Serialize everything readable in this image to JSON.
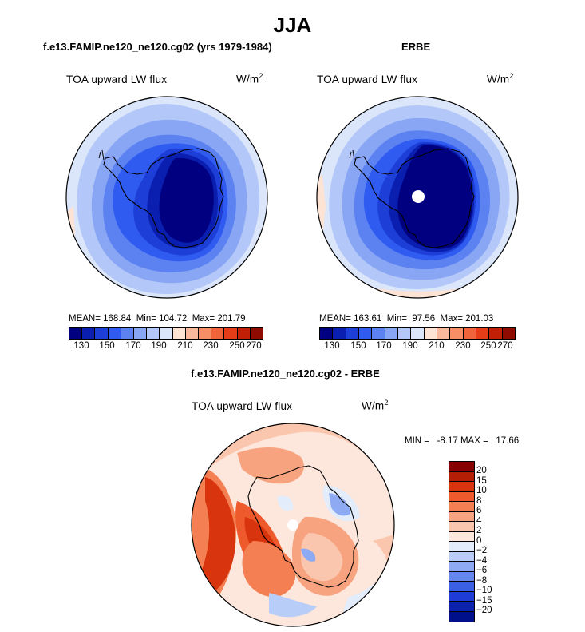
{
  "title": "JJA",
  "left_panel": {
    "case": "f.e13.FAMIP.ne120_ne120.cg02 (yrs 1979-1984)",
    "variable": "TOA upward LW flux",
    "units_base": "W/m",
    "units_exp": "2",
    "stats": "MEAN= 168.84  Min= 104.72  Max= 201.79",
    "map": "polar stereographic, South Pole"
  },
  "right_panel": {
    "case": "ERBE",
    "variable": "TOA upward LW flux",
    "units_base": "W/m",
    "units_exp": "2",
    "stats": "MEAN= 163.61  Min=  97.56  Max= 201.03",
    "map": "polar stereographic, South Pole"
  },
  "diff_panel": {
    "case": "f.e13.FAMIP.ne120_ne120.cg02 - ERBE",
    "variable": "TOA upward LW flux",
    "units_base": "W/m",
    "units_exp": "2",
    "stats": "MIN =   -8.17 MAX =   17.66",
    "map": "polar stereographic, South Pole"
  },
  "chart_data": [
    {
      "type": "heatmap",
      "title": "TOA upward LW flux",
      "units": "W/m^2",
      "case": "f.e13.FAMIP.ne120_ne120.cg02 (yrs 1979-1984)",
      "season": "JJA",
      "mean": 168.84,
      "min": 104.72,
      "max": 201.79,
      "contour_levels": [
        130,
        140,
        150,
        160,
        170,
        180,
        190,
        200,
        210,
        220,
        230,
        240,
        250,
        260,
        270
      ],
      "colorbar_tick_labels": [
        "130",
        "150",
        "170",
        "190",
        "210",
        "230",
        "250",
        "270"
      ]
    },
    {
      "type": "heatmap",
      "title": "TOA upward LW flux",
      "units": "W/m^2",
      "case": "ERBE",
      "season": "JJA",
      "mean": 163.61,
      "min": 97.56,
      "max": 201.03,
      "contour_levels": [
        130,
        140,
        150,
        160,
        170,
        180,
        190,
        200,
        210,
        220,
        230,
        240,
        250,
        260,
        270
      ],
      "colorbar_tick_labels": [
        "130",
        "150",
        "170",
        "190",
        "210",
        "230",
        "250",
        "270"
      ]
    },
    {
      "type": "heatmap",
      "title": "TOA upward LW flux",
      "units": "W/m^2",
      "case": "f.e13.FAMIP.ne120_ne120.cg02 - ERBE",
      "season": "JJA",
      "min": -8.17,
      "max": 17.66,
      "contour_levels": [
        -20,
        -15,
        -10,
        -8,
        -6,
        -4,
        -2,
        0,
        2,
        4,
        6,
        8,
        10,
        15,
        20
      ],
      "colorbar_tick_labels": [
        "20",
        "15",
        "10",
        "8",
        "6",
        "4",
        "2",
        "0",
        "−2",
        "−4",
        "−6",
        "−8",
        "−10",
        "−15",
        "−20"
      ]
    }
  ],
  "colors": {
    "abs_palette": [
      "#000080",
      "#0a1fb0",
      "#1d3fd8",
      "#2f5bf0",
      "#5c82f2",
      "#89a6f5",
      "#b3c8f8",
      "#dbe6fb",
      "#fde3d4",
      "#f9b89b",
      "#f68e66",
      "#f0643c",
      "#e43d18",
      "#c11f06",
      "#8f0b00"
    ],
    "diff_palette_top_to_bottom": [
      "#880000",
      "#b41e05",
      "#d8340d",
      "#ee5a2c",
      "#f37f53",
      "#f7a37f",
      "#fac6ae",
      "#fde7dc",
      "#e3ecfb",
      "#b8cdf7",
      "#8eaaf2",
      "#6587ef",
      "#3c60e4",
      "#1f3cd6",
      "#0a22ad",
      "#00108a"
    ]
  }
}
